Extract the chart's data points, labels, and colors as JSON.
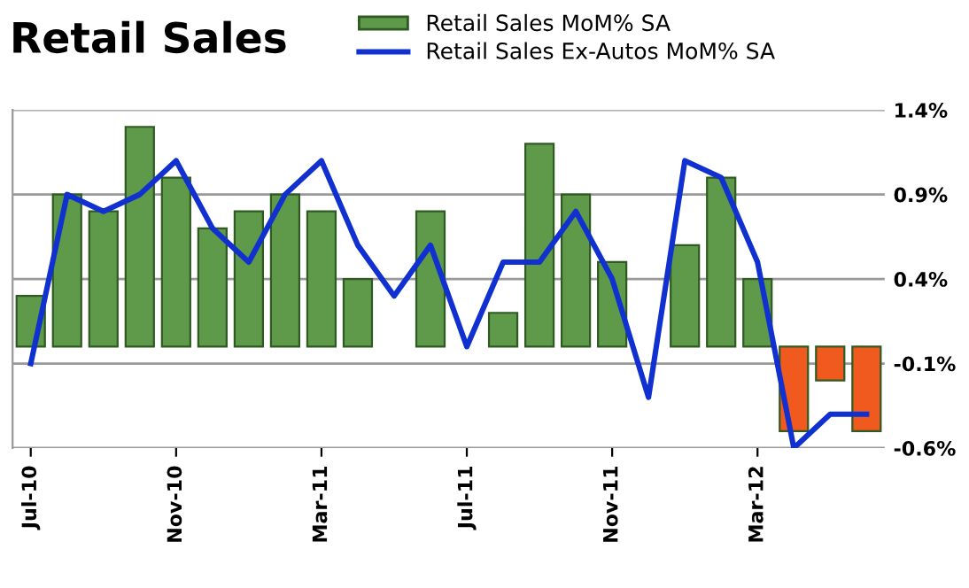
{
  "chart_data": {
    "type": "bar",
    "title": "Retail Sales",
    "categories": [
      "Jul-10",
      null,
      null,
      null,
      "Nov-10",
      null,
      null,
      null,
      "Mar-11",
      null,
      null,
      null,
      "Jul-11",
      null,
      null,
      null,
      "Nov-11",
      null,
      null,
      null,
      "Mar-12",
      null,
      null,
      null
    ],
    "series": [
      {
        "name": "Retail Sales MoM% SA",
        "color": "#5e9a4a",
        "colors": [
          "#5e9a4a",
          "#5e9a4a",
          "#5e9a4a",
          "#5e9a4a",
          "#5e9a4a",
          "#5e9a4a",
          "#5e9a4a",
          "#5e9a4a",
          "#5e9a4a",
          "#5e9a4a",
          "#5e9a4a",
          "#5e9a4a",
          "#5e9a4a",
          "#5e9a4a",
          "#5e9a4a",
          "#5e9a4a",
          "#5e9a4a",
          "#5e9a4a",
          "#5e9a4a",
          "#5e9a4a",
          "#5e9a4a",
          "#f05a1e",
          "#f05a1e",
          "#f05a1e"
        ],
        "values": [
          0.3,
          0.9,
          0.8,
          1.3,
          1.0,
          0.7,
          0.8,
          0.9,
          0.8,
          0.4,
          null,
          0.8,
          null,
          0.2,
          1.2,
          0.9,
          0.5,
          null,
          0.6,
          1.0,
          0.4,
          -0.5,
          -0.2,
          -0.5
        ]
      },
      {
        "name": "Retail Sales Ex-Autos MoM% SA",
        "type": "line",
        "color": "#1030d0",
        "values": [
          -0.1,
          0.9,
          0.8,
          0.9,
          1.1,
          0.7,
          0.5,
          0.9,
          1.1,
          0.6,
          0.3,
          0.6,
          0.0,
          0.5,
          0.5,
          0.8,
          0.4,
          -0.3,
          1.1,
          1.0,
          0.5,
          -0.6,
          -0.4,
          -0.4
        ]
      }
    ],
    "ylim": [
      -0.6,
      1.4
    ],
    "yticks": [
      {
        "value": 1.4,
        "label": "1.4%"
      },
      {
        "value": 0.9,
        "label": "0.9%"
      },
      {
        "value": 0.4,
        "label": "0.4%"
      },
      {
        "value": -0.1,
        "label": "-0.1%"
      },
      {
        "value": -0.6,
        "label": "-0.6%"
      }
    ],
    "grid": "y",
    "legend": "top",
    "marker": "none",
    "line_style": "solid"
  }
}
